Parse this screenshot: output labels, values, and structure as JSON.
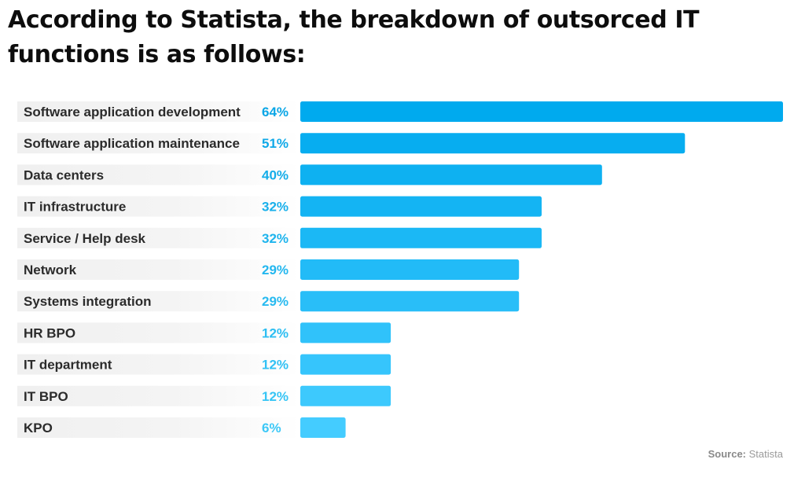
{
  "colors": {
    "bar_dark": "#00aaee",
    "bar_light": "#44ccff",
    "value_dark": "#0aa6e6",
    "value_light": "#3cc8f7",
    "label_band": "#f1f1f1"
  },
  "source": {
    "prefix": "Source:",
    "name": "Statista"
  },
  "chart_data": {
    "type": "bar",
    "orientation": "horizontal",
    "title": "According to Statista, the breakdown of outsorced IT functions is as follows:",
    "categories": [
      "Software application development",
      "Software application maintenance",
      "Data centers",
      "IT infrastructure",
      "Service / Help desk",
      "Network",
      "Systems integration",
      "HR BPO",
      "IT department",
      "IT BPO",
      "KPO"
    ],
    "values": [
      64,
      51,
      40,
      32,
      32,
      29,
      29,
      12,
      12,
      12,
      6
    ],
    "value_labels": [
      "64%",
      "51%",
      "40%",
      "32%",
      "32%",
      "29%",
      "29%",
      "12%",
      "12%",
      "12%",
      "6%"
    ],
    "unit": "%",
    "xlim": [
      0,
      64
    ],
    "grid": false,
    "legend": "none"
  }
}
